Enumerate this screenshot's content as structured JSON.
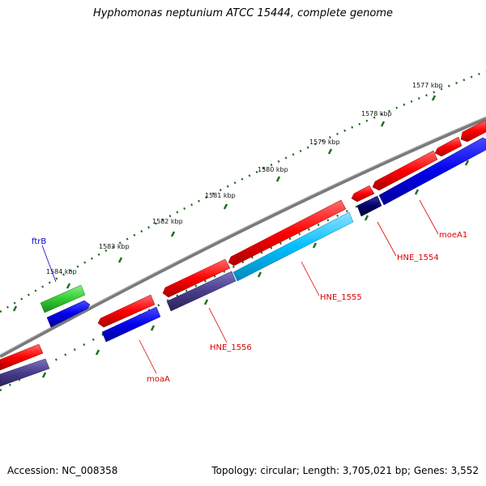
{
  "title": "Hyphomonas neptunium ATCC 15444, complete genome",
  "ruler": {
    "labels": [
      "1577 kbp",
      "1578 kbp",
      "1579 kbp",
      "1580 kbp",
      "1581 kbp",
      "1582 kbp",
      "1583 kbp",
      "1584 kbp"
    ]
  },
  "genes": [
    {
      "label": "moeA1",
      "color": "#dd0000"
    },
    {
      "label": "HNE_1554",
      "color": "#dd0000"
    },
    {
      "label": "HNE_1555",
      "color": "#dd0000"
    },
    {
      "label": "HNE_1556",
      "color": "#dd0000"
    },
    {
      "label": "moaA",
      "color": "#dd0000"
    },
    {
      "label": "ftrB",
      "color": "#0000cc"
    }
  ],
  "colors": {
    "backbone": "#808080",
    "cds_forward": "#ee0000",
    "cds_blue": "#0000ee",
    "cds_navy": "#000066",
    "cds_slate": "#483d8b",
    "cds_cyan": "#00bfff",
    "cds_green": "#33cc33",
    "tick": "#1f6f1f"
  },
  "footer": {
    "accession": "Accession: NC_008358",
    "topology": "Topology: circular; Length: 3,705,021 bp; Genes: 3,552"
  }
}
